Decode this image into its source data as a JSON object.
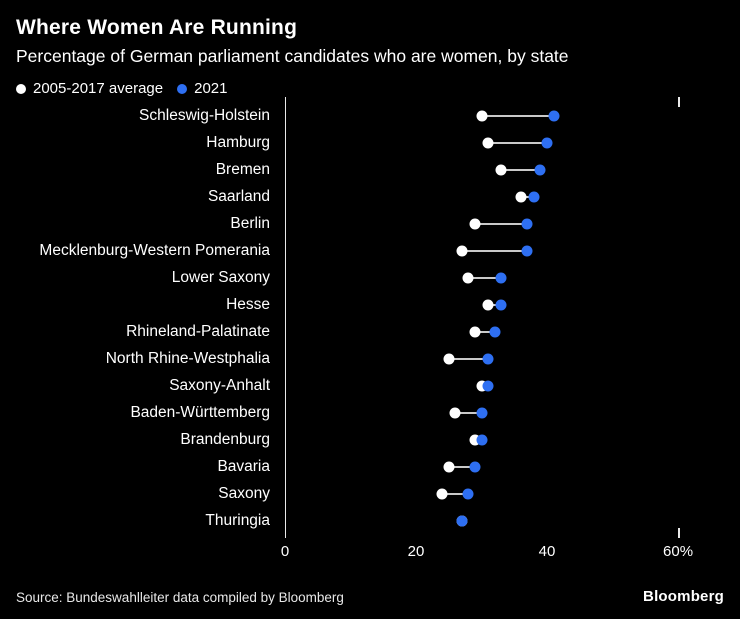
{
  "chart": {
    "title": "Where Women Are Running",
    "subtitle": "Percentage of German parliament candidates who are women, by state",
    "legend": [
      {
        "label": "2005-2017 average",
        "color": "#ffffff"
      },
      {
        "label": "2021",
        "color": "#2e6ff2"
      }
    ],
    "source": "Source: Bundeswahlleiter data compiled by Bloomberg",
    "brand": "Bloomberg"
  },
  "chart_data": {
    "type": "scatter",
    "subtype": "dumbbell-dot-plot",
    "title": "Where Women Are Running",
    "subtitle": "Percentage of German parliament candidates who are women, by state",
    "categories": [
      "Schleswig-Holstein",
      "Hamburg",
      "Bremen",
      "Saarland",
      "Berlin",
      "Mecklenburg-Western Pomerania",
      "Lower Saxony",
      "Hesse",
      "Rhineland-Palatinate",
      "North Rhine-Westphalia",
      "Saxony-Anhalt",
      "Baden-Württemberg",
      "Brandenburg",
      "Bavaria",
      "Saxony",
      "Thuringia"
    ],
    "series": [
      {
        "name": "2005-2017 average",
        "color": "#ffffff",
        "values": [
          30,
          31,
          33,
          36,
          29,
          27,
          28,
          31,
          29,
          25,
          30,
          26,
          29,
          25,
          24,
          27
        ]
      },
      {
        "name": "2021",
        "color": "#2e6ff2",
        "values": [
          41,
          40,
          39,
          38,
          37,
          37,
          33,
          33,
          32,
          31,
          31,
          30,
          30,
          29,
          28,
          27
        ]
      }
    ],
    "xlim": [
      0,
      60.3
    ],
    "x_ticks": [
      0,
      20,
      40,
      60
    ],
    "x_tick_labels": [
      "0",
      "20",
      "40",
      "60%"
    ],
    "connector_color": "#c9c9c9",
    "background": "#000000",
    "grid": false,
    "legend_position": "top-left",
    "axis_line_at_zero": true
  }
}
